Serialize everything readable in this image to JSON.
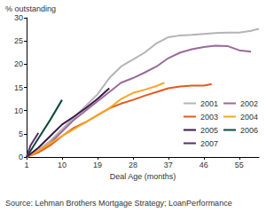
{
  "chart_data": {
    "type": "line",
    "x_label": "Deal Age (months)",
    "y_label": "% outstanding",
    "annotations": [
      "Source: Lehman Brothers Mortgage Strategy; LoanPerformance"
    ],
    "xlim": [
      1,
      60
    ],
    "xticks": [
      1,
      10,
      19,
      28,
      37,
      46,
      55
    ],
    "ylim": [
      0,
      30
    ],
    "yticks": [
      0,
      5,
      10,
      15,
      20,
      25,
      30
    ],
    "grid": false,
    "legend": "lower right",
    "marker": "none",
    "line_style": "solid",
    "series": [
      {
        "name": "2001",
        "color": "#b4b4b4",
        "x": [
          1,
          4,
          7,
          10,
          13,
          16,
          19,
          22,
          25,
          28,
          31,
          34,
          37,
          40,
          43,
          46,
          49,
          52,
          55,
          58,
          60
        ],
        "values": [
          0,
          1.5,
          3.5,
          6,
          8.5,
          11,
          13.5,
          17,
          19.5,
          21,
          22.5,
          24.5,
          25.8,
          26.2,
          26.3,
          26.5,
          26.7,
          26.8,
          26.8,
          27.2,
          27.6
        ]
      },
      {
        "name": "2002",
        "color": "#9a6a9a",
        "x": [
          1,
          4,
          7,
          10,
          13,
          16,
          19,
          22,
          25,
          28,
          31,
          34,
          37,
          40,
          43,
          46,
          49,
          52,
          55,
          58
        ],
        "values": [
          0,
          1.2,
          3,
          5.5,
          8,
          10,
          12,
          14,
          16,
          17,
          18.2,
          19.5,
          21.3,
          22.5,
          23.2,
          23.7,
          24,
          23.9,
          23,
          22.7
        ]
      },
      {
        "name": "2003",
        "color": "#e8581c",
        "x": [
          1,
          4,
          7,
          10,
          13,
          16,
          19,
          22,
          25,
          28,
          31,
          34,
          37,
          40,
          43,
          46,
          48
        ],
        "values": [
          0,
          1,
          2.5,
          4.5,
          6.3,
          7.5,
          9,
          10.5,
          11.5,
          12.3,
          13.2,
          14,
          14.8,
          15.2,
          15.4,
          15.4,
          15.7
        ]
      },
      {
        "name": "2004",
        "color": "#f5a623",
        "x": [
          1,
          4,
          7,
          10,
          13,
          16,
          19,
          22,
          25,
          28,
          31,
          34,
          36
        ],
        "values": [
          0,
          1.3,
          3,
          4.5,
          6,
          7.5,
          9,
          10.5,
          12.5,
          13.8,
          14.5,
          15.3,
          16
        ]
      },
      {
        "name": "2005",
        "color": "#3a1848",
        "x": [
          1,
          4,
          7,
          10,
          13,
          16,
          19,
          22
        ],
        "values": [
          0,
          2,
          4.5,
          7,
          8.7,
          10.5,
          12.5,
          14.8
        ]
      },
      {
        "name": "2006",
        "color": "#0b4a3a",
        "x": [
          1,
          4,
          7,
          10
        ],
        "values": [
          0,
          4,
          8,
          12.3
        ]
      },
      {
        "name": "2007",
        "color": "#5b2d6b",
        "x": [
          1,
          2,
          4
        ],
        "values": [
          0,
          2.5,
          5.2
        ]
      }
    ]
  }
}
